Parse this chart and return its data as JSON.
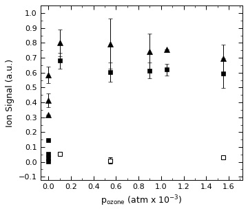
{
  "title": "",
  "xlabel": "p$_\\mathrm{ozone}$ (atm x 10$^{-3}$)",
  "ylabel": "Ion Signal (a.u.)",
  "xlim": [
    -0.07,
    1.72
  ],
  "ylim": [
    -0.12,
    1.05
  ],
  "xticks": [
    0.0,
    0.2,
    0.4,
    0.6,
    0.8,
    1.0,
    1.2,
    1.4,
    1.6
  ],
  "yticks": [
    -0.1,
    0.0,
    0.1,
    0.2,
    0.3,
    0.4,
    0.5,
    0.6,
    0.7,
    0.8,
    0.9,
    1.0
  ],
  "filled_triangle": {
    "x": [
      0.0,
      0.0,
      0.0,
      0.1,
      0.55,
      0.9,
      1.05,
      1.55
    ],
    "y": [
      0.585,
      0.415,
      0.315,
      0.8,
      0.795,
      0.74,
      0.755,
      0.695
    ],
    "yerr": [
      0.055,
      0.045,
      0.0,
      0.09,
      0.17,
      0.12,
      0.0,
      0.095
    ]
  },
  "filled_square": {
    "x": [
      0.0,
      0.0,
      0.0,
      0.0,
      0.1,
      0.55,
      0.9,
      1.05,
      1.55
    ],
    "y": [
      0.145,
      0.055,
      0.025,
      0.005,
      0.68,
      0.605,
      0.615,
      0.62,
      0.595
    ],
    "yerr": [
      0.0,
      0.01,
      0.01,
      0.005,
      0.055,
      0.065,
      0.055,
      0.04,
      0.1
    ]
  },
  "open_square": {
    "x": [
      0.1,
      0.55,
      1.55
    ],
    "y": [
      0.055,
      0.01,
      0.03
    ],
    "yerr": [
      0.0,
      0.02,
      0.0
    ]
  },
  "marker_size_tri": 6,
  "marker_size_sq": 5,
  "capsize": 2,
  "elinewidth": 0.7,
  "background_color": "#ffffff"
}
